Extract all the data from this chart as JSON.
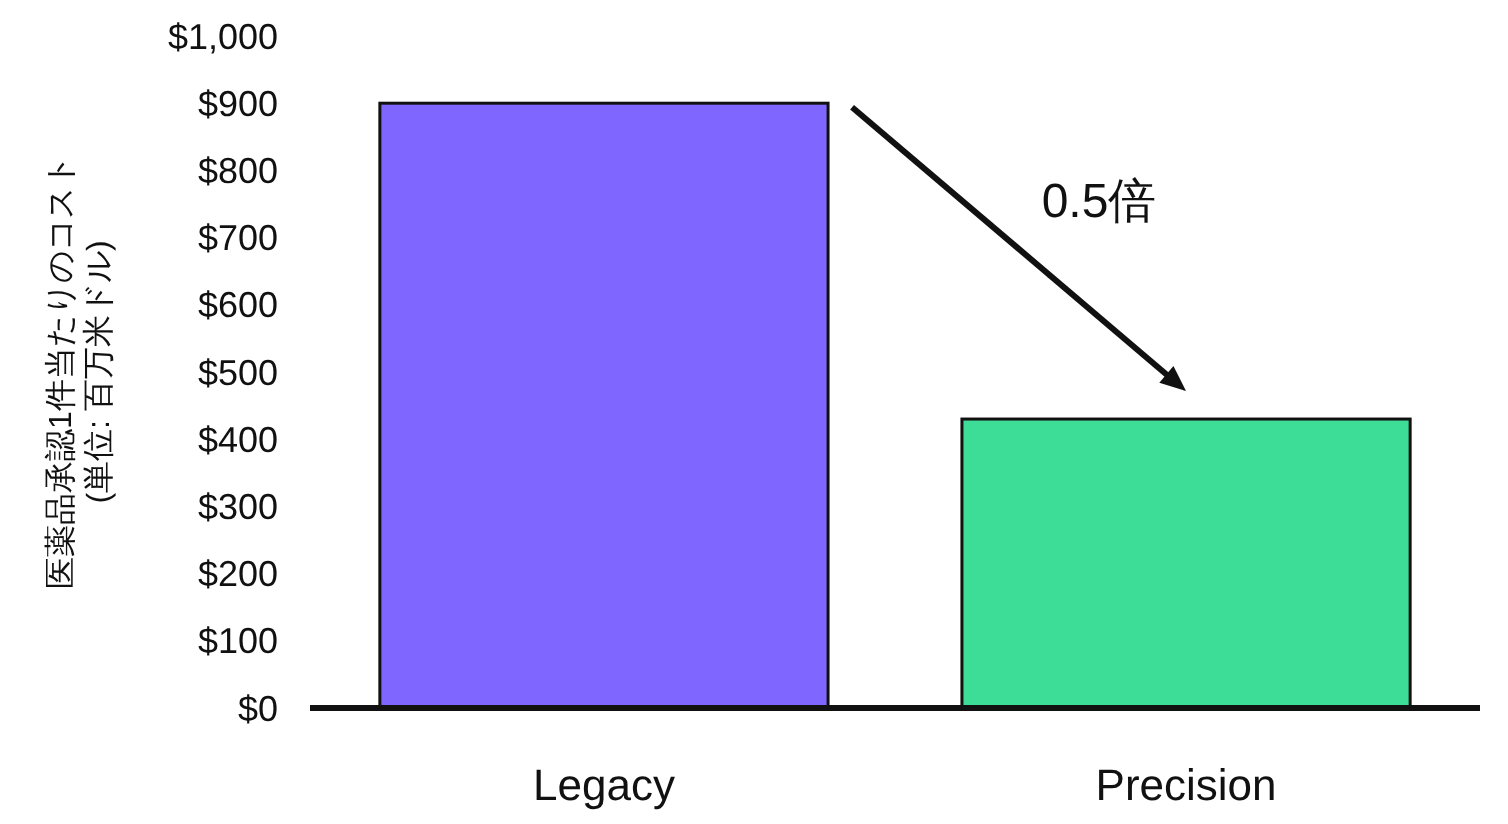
{
  "chart_data": {
    "type": "bar",
    "ylabel": "医薬品承認1件当たりのコスト\n(単位: 百万米ドル)",
    "categories": [
      "Legacy",
      "Precision"
    ],
    "values": [
      900,
      430
    ],
    "colors": [
      "#7f66ff",
      "#3ddc97"
    ],
    "ylim": [
      0,
      1000
    ],
    "yticks": [
      {
        "value": 0,
        "label": "$0"
      },
      {
        "value": 100,
        "label": "$100"
      },
      {
        "value": 200,
        "label": "$200"
      },
      {
        "value": 300,
        "label": "$300"
      },
      {
        "value": 400,
        "label": "$400"
      },
      {
        "value": 500,
        "label": "$500"
      },
      {
        "value": 600,
        "label": "$600"
      },
      {
        "value": 700,
        "label": "$700"
      },
      {
        "value": 800,
        "label": "$800"
      },
      {
        "value": 900,
        "label": "$900"
      },
      {
        "value": 1000,
        "label": "$1,000"
      }
    ],
    "grid": false,
    "annotations": [
      "0.5倍"
    ]
  }
}
